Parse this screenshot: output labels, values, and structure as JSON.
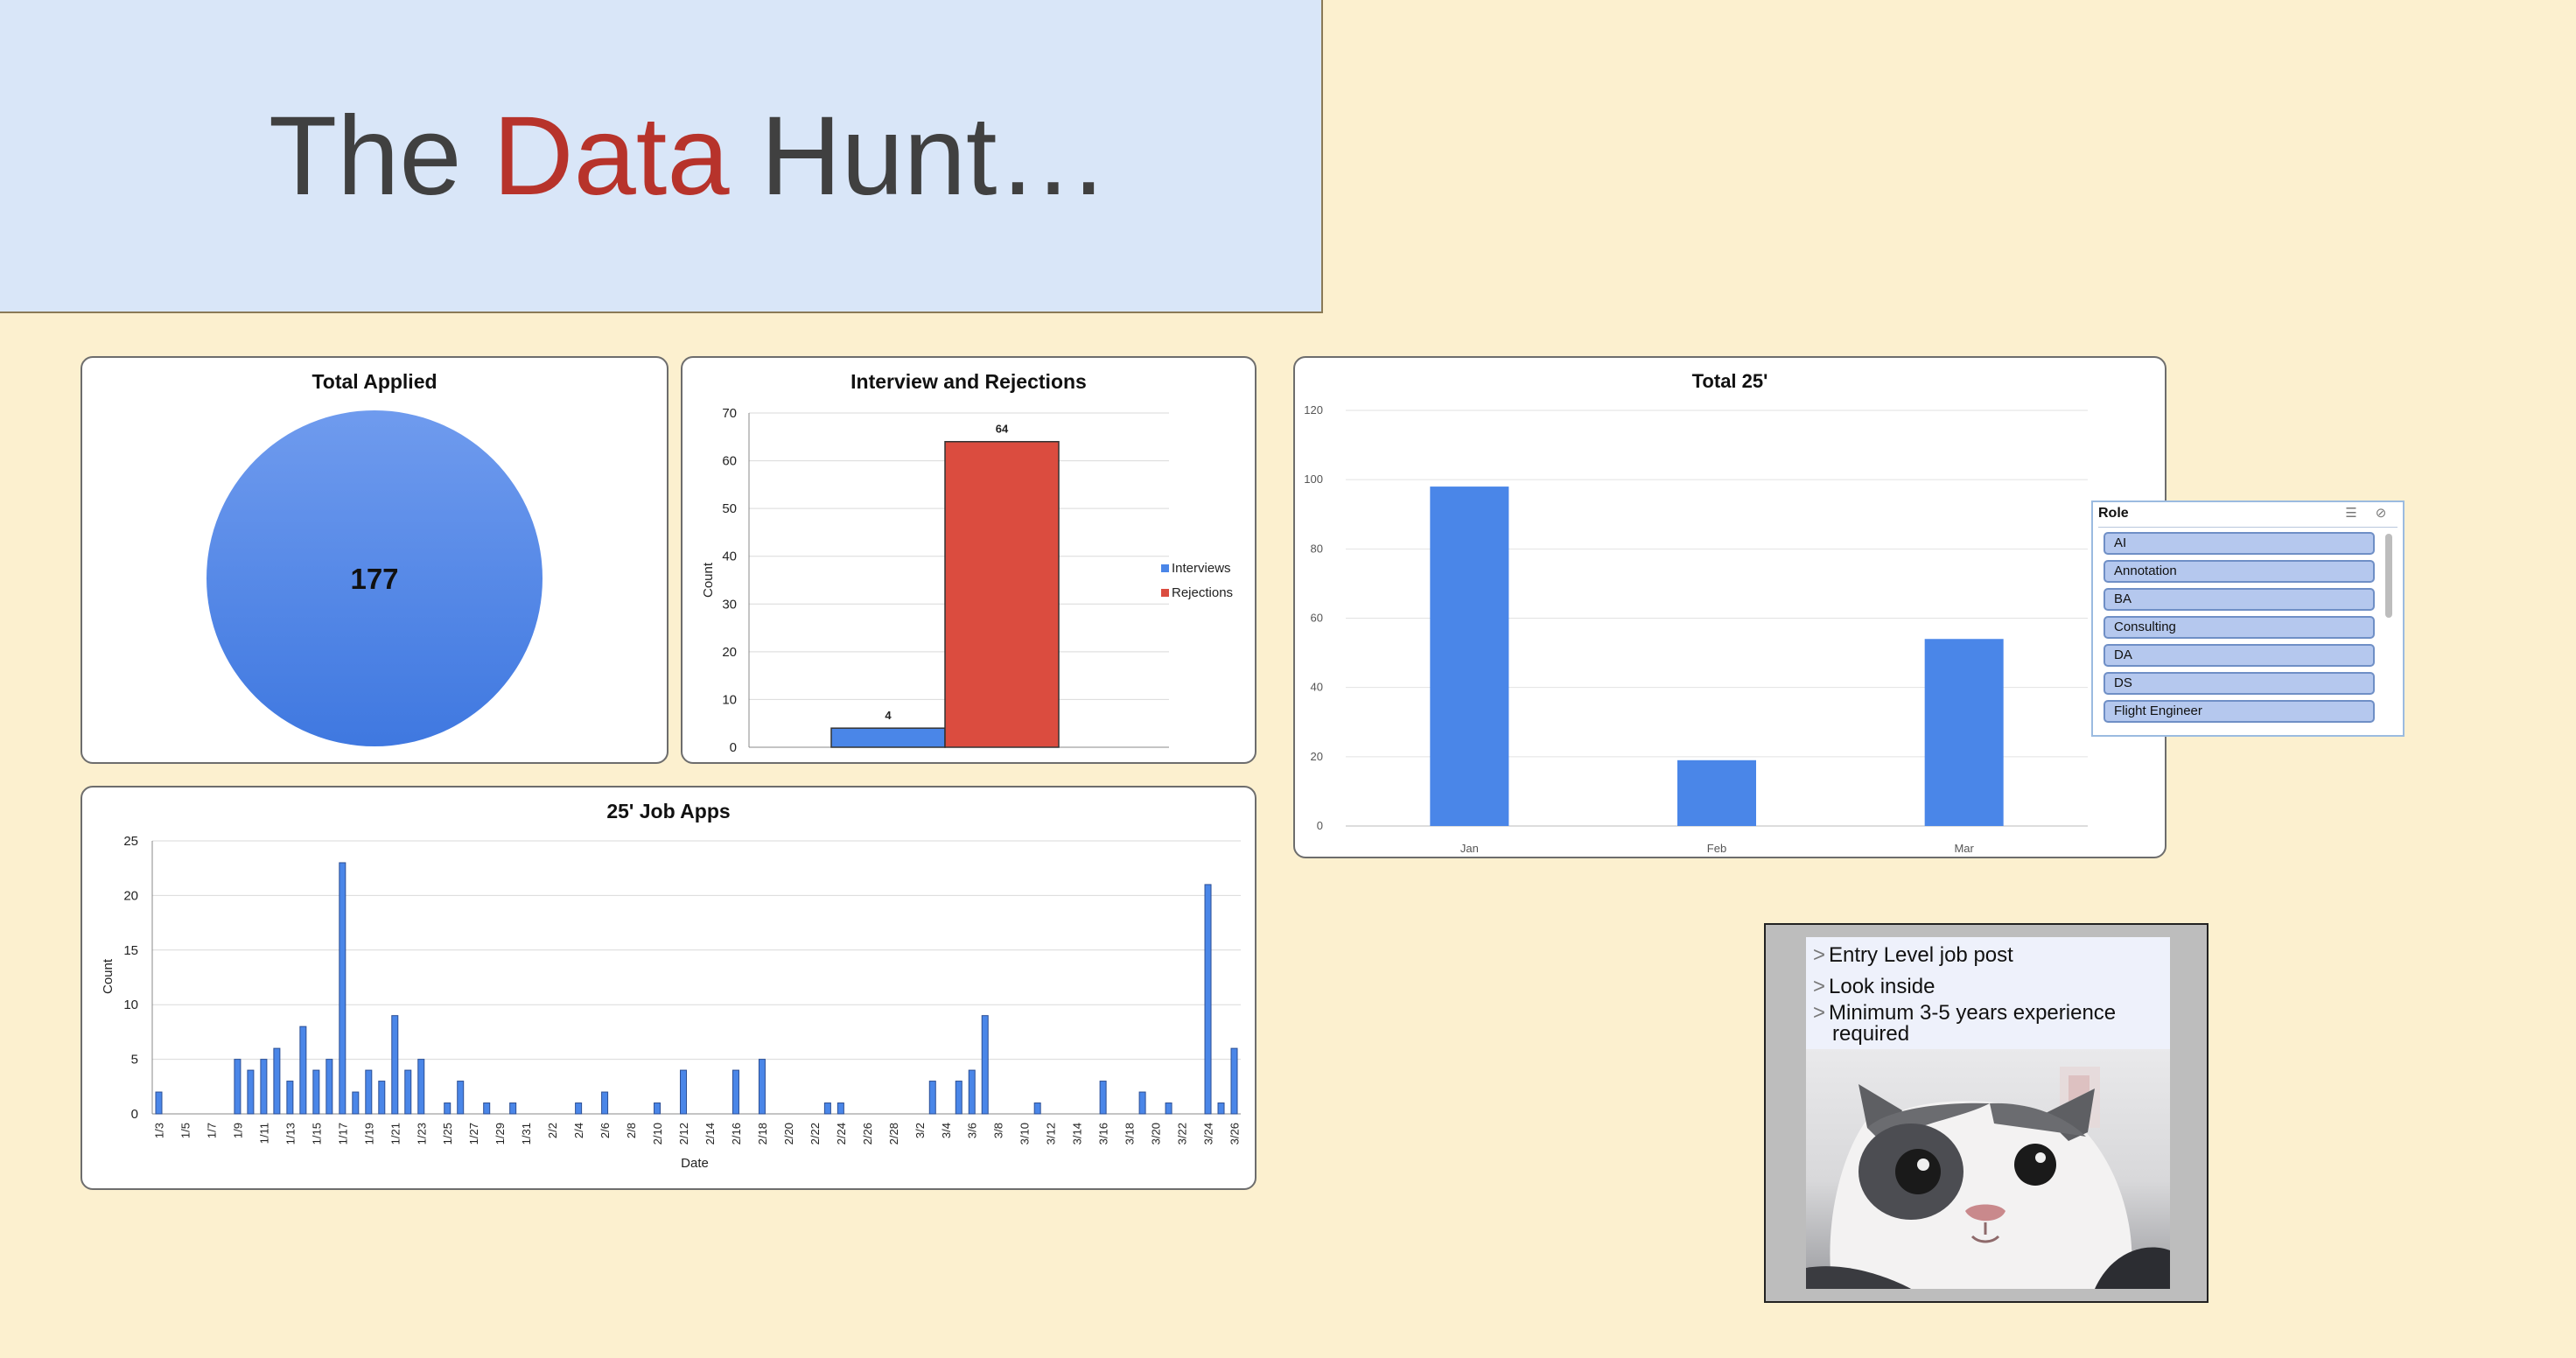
{
  "title": {
    "part1": "The ",
    "accent": "Data",
    "part2": " Hunt…"
  },
  "colors": {
    "background": "#fcf0cf",
    "banner": "#d9e6f8",
    "accent": "#b7332b",
    "blue": "#4a86e8",
    "red": "#db4c3f"
  },
  "cards": {
    "total_applied": {
      "title": "Total Applied",
      "value": "177"
    },
    "interviews": {
      "title": "Interview and Rejections",
      "ylabel": "Count"
    },
    "total25": {
      "title": "Total 25'"
    },
    "jobapps": {
      "title": "25' Job Apps",
      "xlabel": "Date",
      "ylabel": "Count"
    }
  },
  "slicer": {
    "header": "Role",
    "multi_select_icon": "multi-select-icon",
    "clear_filter_icon": "clear-filter-icon",
    "items": [
      "AI",
      "Annotation",
      "BA",
      "Consulting",
      "DA",
      "DS",
      "Flight  Engineer"
    ]
  },
  "meme": {
    "arrow": ">",
    "lines": [
      "Entry Level job post",
      "Look inside",
      "Minimum 3-5 years experience",
      "required"
    ]
  },
  "chart_data": [
    {
      "type": "pie",
      "title": "Total Applied",
      "values": [
        177
      ],
      "labels": [
        "177"
      ]
    },
    {
      "type": "bar",
      "title": "Interview and Rejections",
      "ylabel": "Count",
      "ylim": [
        0,
        70
      ],
      "yticks": [
        0,
        10,
        20,
        30,
        40,
        50,
        60,
        70
      ],
      "grid": true,
      "legend": "right",
      "series": [
        {
          "name": "Interviews",
          "values": [
            4
          ],
          "color": "#4a86e8"
        },
        {
          "name": "Rejections",
          "values": [
            64
          ],
          "color": "#db4c3f"
        }
      ]
    },
    {
      "type": "bar",
      "title": "Total 25'",
      "categories": [
        "Jan",
        "Feb",
        "Mar"
      ],
      "values": [
        98,
        19,
        54
      ],
      "ylim": [
        0,
        120
      ],
      "yticks": [
        0,
        20,
        40,
        60,
        80,
        100,
        120
      ],
      "grid": true,
      "color": "#4a86e8"
    },
    {
      "type": "bar",
      "title": "25' Job Apps",
      "xlabel": "Date",
      "ylabel": "Count",
      "ylim": [
        0,
        25
      ],
      "yticks": [
        0,
        5,
        10,
        15,
        20,
        25
      ],
      "grid": true,
      "color": "#4a86e8",
      "tick_labels": [
        "1/3",
        "1/5",
        "1/7",
        "1/9",
        "1/11",
        "1/13",
        "1/15",
        "1/17",
        "1/19",
        "1/21",
        "1/23",
        "1/25",
        "1/27",
        "1/29",
        "1/31",
        "2/2",
        "2/4",
        "2/6",
        "2/8",
        "2/10",
        "2/12",
        "2/14",
        "2/16",
        "2/18",
        "2/20",
        "2/22",
        "2/24",
        "2/26",
        "2/28",
        "3/2",
        "3/4",
        "3/6",
        "3/8",
        "3/10",
        "3/12",
        "3/14",
        "3/16",
        "3/18",
        "3/20",
        "3/22",
        "3/24",
        "3/26"
      ],
      "x": [
        "1/3",
        "1/9",
        "1/10",
        "1/11",
        "1/12",
        "1/13",
        "1/14",
        "1/15",
        "1/16",
        "1/17",
        "1/18",
        "1/19",
        "1/20",
        "1/21",
        "1/22",
        "1/23",
        "1/25",
        "1/26",
        "1/28",
        "1/30",
        "2/4",
        "2/6",
        "2/10",
        "2/12",
        "2/16",
        "2/18",
        "2/23",
        "2/24",
        "3/3",
        "3/5",
        "3/6",
        "3/7",
        "3/11",
        "3/16",
        "3/19",
        "3/21",
        "3/24",
        "3/25",
        "3/26"
      ],
      "values": [
        2,
        5,
        4,
        5,
        6,
        3,
        8,
        4,
        5,
        23,
        2,
        4,
        3,
        9,
        4,
        5,
        1,
        3,
        1,
        1,
        1,
        2,
        1,
        4,
        4,
        5,
        1,
        1,
        3,
        3,
        4,
        9,
        1,
        3,
        2,
        1,
        21,
        1,
        6
      ]
    }
  ]
}
